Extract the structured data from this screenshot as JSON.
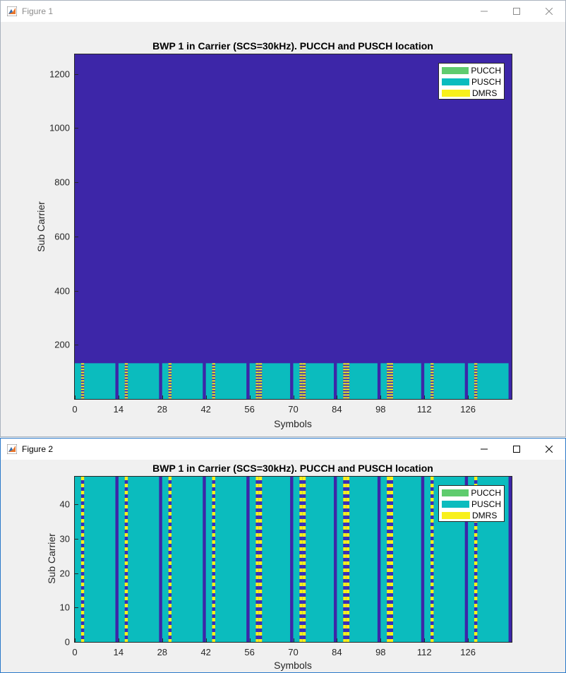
{
  "colors": {
    "empty": "#3d26a8",
    "pucch": "#5fcc6e",
    "pusch": "#0bbcbe",
    "dmrs": "#f8f01b",
    "gap": "#3b2db8"
  },
  "figure1": {
    "window_title": "Figure 1",
    "icon": "matlab-figure-icon",
    "chart_data": {
      "type": "heatmap",
      "title": "BWP 1 in Carrier (SCS=30kHz). PUCCH and PUSCH location",
      "xlabel": "Symbols",
      "ylabel": "Sub Carrier",
      "xlim": [
        0,
        140
      ],
      "ylim": [
        0,
        1272
      ],
      "x_ticks": [
        "0",
        "14",
        "28",
        "42",
        "56",
        "70",
        "84",
        "98",
        "112",
        "126"
      ],
      "y_ticks": [
        "200",
        "400",
        "600",
        "800",
        "1000",
        "1200"
      ],
      "legend": [
        "PUCCH",
        "PUSCH",
        "DMRS"
      ],
      "legend_position": "top-right",
      "pusch_subcarrier_range": [
        0,
        132
      ],
      "slots": [
        {
          "start": 0,
          "end": 13,
          "dmrs": [
            2
          ]
        },
        {
          "start": 14,
          "end": 27,
          "dmrs": [
            16
          ]
        },
        {
          "start": 28,
          "end": 41,
          "dmrs": [
            30
          ]
        },
        {
          "start": 42,
          "end": 55,
          "dmrs": [
            44
          ]
        },
        {
          "start": 56,
          "end": 69,
          "dmrs": [
            58,
            59
          ]
        },
        {
          "start": 70,
          "end": 83,
          "dmrs": [
            72,
            73
          ]
        },
        {
          "start": 84,
          "end": 97,
          "dmrs": [
            86,
            87
          ]
        },
        {
          "start": 98,
          "end": 111,
          "dmrs": [
            100,
            101
          ]
        },
        {
          "start": 112,
          "end": 125,
          "dmrs": [
            114
          ]
        },
        {
          "start": 126,
          "end": 139,
          "dmrs": [
            128
          ]
        }
      ]
    }
  },
  "figure2": {
    "window_title": "Figure 2",
    "icon": "matlab-figure-icon",
    "chart_data": {
      "type": "heatmap",
      "title": "BWP 1 in Carrier (SCS=30kHz). PUCCH and PUSCH location",
      "xlabel": "Symbols",
      "ylabel": "Sub Carrier",
      "xlim": [
        0,
        140
      ],
      "ylim": [
        0,
        48
      ],
      "x_ticks": [
        "0",
        "14",
        "28",
        "42",
        "56",
        "70",
        "84",
        "98",
        "112",
        "126"
      ],
      "y_ticks": [
        "0",
        "10",
        "20",
        "30",
        "40"
      ],
      "legend": [
        "PUCCH",
        "PUSCH",
        "DMRS"
      ],
      "legend_position": "top-right",
      "slots": [
        {
          "start": 0,
          "end": 13,
          "dmrs": [
            2
          ]
        },
        {
          "start": 14,
          "end": 27,
          "dmrs": [
            16
          ]
        },
        {
          "start": 28,
          "end": 41,
          "dmrs": [
            30
          ]
        },
        {
          "start": 42,
          "end": 55,
          "dmrs": [
            44
          ]
        },
        {
          "start": 56,
          "end": 69,
          "dmrs": [
            58,
            59
          ]
        },
        {
          "start": 70,
          "end": 83,
          "dmrs": [
            72,
            73
          ]
        },
        {
          "start": 84,
          "end": 97,
          "dmrs": [
            86,
            87
          ]
        },
        {
          "start": 98,
          "end": 111,
          "dmrs": [
            100,
            101
          ]
        },
        {
          "start": 112,
          "end": 125,
          "dmrs": [
            114
          ]
        },
        {
          "start": 126,
          "end": 139,
          "dmrs": [
            128
          ]
        }
      ]
    }
  }
}
